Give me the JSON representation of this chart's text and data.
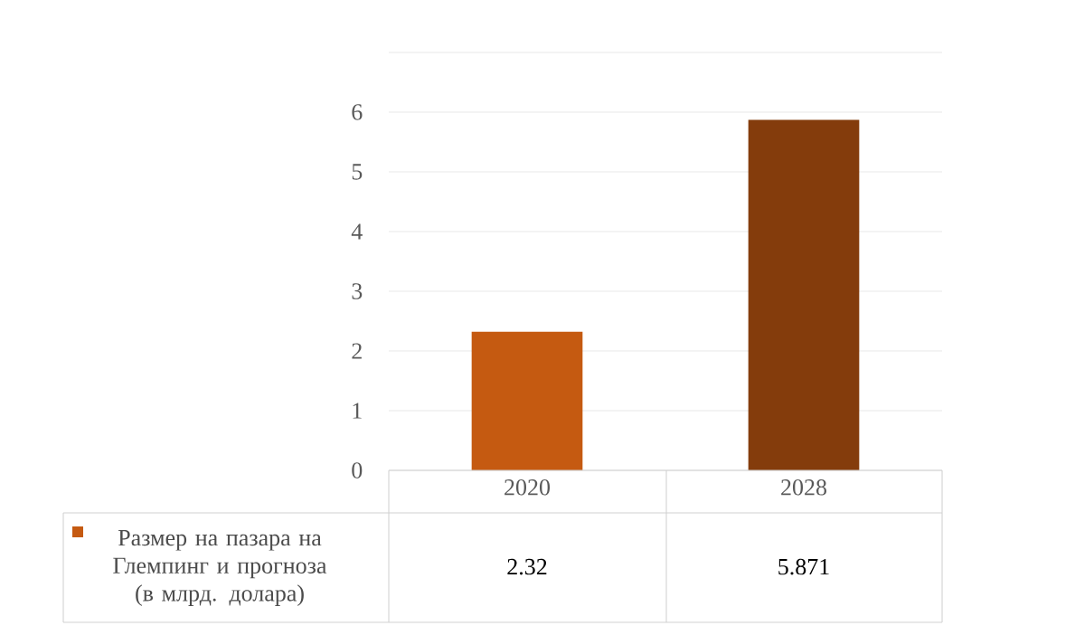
{
  "chart_data": {
    "type": "bar",
    "categories": [
      "2020",
      "2028"
    ],
    "series": [
      {
        "name": "Размер на пазара на Глемпинг и прогноза (в млрд. долара)",
        "color": "#c55a11",
        "colors": [
          "#c55a11",
          "#843c0c"
        ],
        "values": [
          2.32,
          5.871
        ]
      }
    ],
    "ylim": [
      0,
      7
    ],
    "yticks": [
      0,
      1,
      2,
      3,
      4,
      5,
      6,
      {
        "value": 7,
        "label": null
      }
    ],
    "grid": "y",
    "data_labels": true,
    "legend": "bottom"
  }
}
